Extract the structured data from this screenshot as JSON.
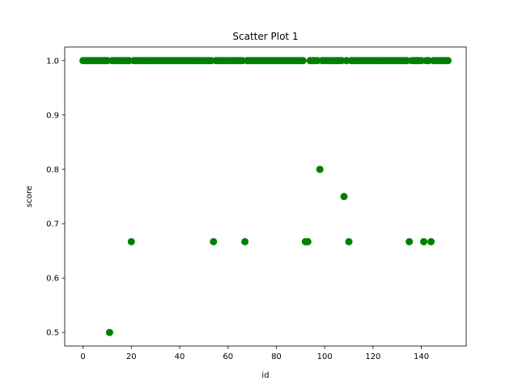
{
  "chart_data": {
    "type": "scatter",
    "title": "Scatter Plot 1",
    "xlabel": "id",
    "ylabel": "score",
    "xlim": [
      -7.55,
      158.55
    ],
    "ylim": [
      0.475,
      1.025
    ],
    "xticks": [
      0,
      20,
      40,
      60,
      80,
      100,
      120,
      140
    ],
    "yticks": [
      0.5,
      0.6,
      0.7,
      0.8,
      0.9,
      1.0
    ],
    "ytick_labels": [
      "0.5",
      "0.6",
      "0.7",
      "0.8",
      "0.9",
      "1.0"
    ],
    "grid": false,
    "color": "#008000",
    "series": [
      {
        "x": [
          0,
          1,
          2,
          3,
          4,
          5,
          6,
          7,
          8,
          9,
          10,
          11,
          12,
          13,
          14,
          15,
          16,
          17,
          18,
          19,
          20,
          21,
          22,
          23,
          24,
          25,
          26,
          27,
          28,
          29,
          30,
          31,
          32,
          33,
          34,
          35,
          36,
          37,
          38,
          39,
          40,
          41,
          42,
          43,
          44,
          45,
          46,
          47,
          48,
          49,
          50,
          51,
          52,
          53,
          54,
          55,
          56,
          57,
          58,
          59,
          60,
          61,
          62,
          63,
          64,
          65,
          66,
          67,
          68,
          69,
          70,
          71,
          72,
          73,
          74,
          75,
          76,
          77,
          78,
          79,
          80,
          81,
          82,
          83,
          84,
          85,
          86,
          87,
          88,
          89,
          90,
          91,
          92,
          93,
          94,
          95,
          96,
          97,
          98,
          99,
          100,
          101,
          102,
          103,
          104,
          105,
          106,
          107,
          108,
          109,
          110,
          111,
          112,
          113,
          114,
          115,
          116,
          117,
          118,
          119,
          120,
          121,
          122,
          123,
          124,
          125,
          126,
          127,
          128,
          129,
          130,
          131,
          132,
          133,
          134,
          135,
          136,
          137,
          138,
          139,
          140,
          141,
          142,
          143,
          144,
          145,
          146,
          147,
          148,
          149,
          150,
          151
        ],
        "y": [
          1,
          1,
          1,
          1,
          1,
          1,
          1,
          1,
          1,
          1,
          1,
          0.5,
          1,
          1,
          1,
          1,
          1,
          1,
          1,
          1,
          0.667,
          1,
          1,
          1,
          1,
          1,
          1,
          1,
          1,
          1,
          1,
          1,
          1,
          1,
          1,
          1,
          1,
          1,
          1,
          1,
          1,
          1,
          1,
          1,
          1,
          1,
          1,
          1,
          1,
          1,
          1,
          1,
          1,
          1,
          0.667,
          1,
          1,
          1,
          1,
          1,
          1,
          1,
          1,
          1,
          1,
          1,
          1,
          0.667,
          1,
          1,
          1,
          1,
          1,
          1,
          1,
          1,
          1,
          1,
          1,
          1,
          1,
          1,
          1,
          1,
          1,
          1,
          1,
          1,
          1,
          1,
          1,
          1,
          0.667,
          0.667,
          1,
          1,
          1,
          1,
          0.8,
          1,
          1,
          1,
          1,
          1,
          1,
          1,
          1,
          1,
          0.75,
          1,
          0.667,
          1,
          1,
          1,
          1,
          1,
          1,
          1,
          1,
          1,
          1,
          1,
          1,
          1,
          1,
          1,
          1,
          1,
          1,
          1,
          1,
          1,
          1,
          1,
          1,
          0.667,
          1,
          1,
          1,
          1,
          1,
          0.667,
          1,
          1,
          0.667,
          1,
          1,
          1,
          1,
          1,
          1,
          1
        ]
      }
    ]
  }
}
